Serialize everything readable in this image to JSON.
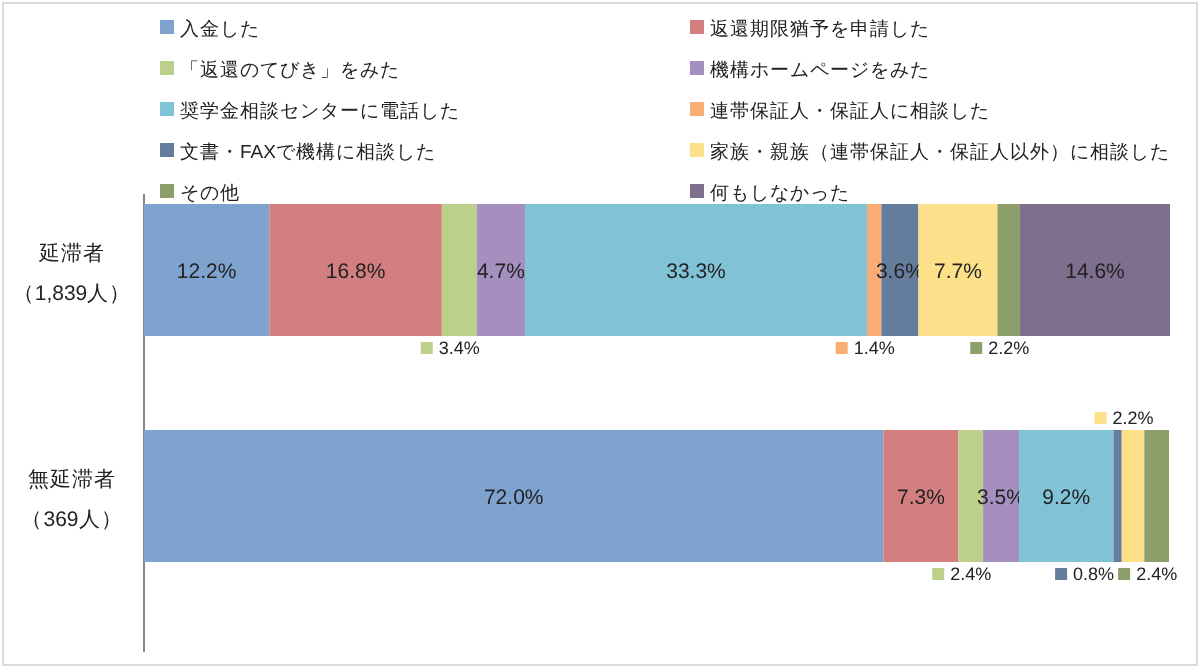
{
  "chart_data": {
    "type": "bar",
    "orientation": "horizontal",
    "stacked": true,
    "legend": "top",
    "data_labels": true,
    "categories": [
      "延滞者（1,839人）",
      "無延滞者（369人）"
    ],
    "series": [
      {
        "name": "入金した",
        "color": "#7fa3cf",
        "values": [
          12.2,
          72.0
        ],
        "value_labels": [
          "12.2%",
          "72.0%"
        ]
      },
      {
        "name": "返還期限猶予を申請した",
        "color": "#d47f7f",
        "values": [
          16.8,
          7.3
        ],
        "value_labels": [
          "16.8%",
          "7.3%"
        ]
      },
      {
        "name": "「返還のてびき」をみた",
        "color": "#bcd08b",
        "values": [
          3.4,
          2.4
        ],
        "value_labels": [
          "3.4%",
          "2.4%"
        ]
      },
      {
        "name": "機構ホームページをみた",
        "color": "#a48fbf",
        "values": [
          4.7,
          3.5
        ],
        "value_labels": [
          "4.7%",
          "3.5%"
        ]
      },
      {
        "name": "奨学金相談センターに電話した",
        "color": "#80c3d6",
        "values": [
          33.3,
          9.2
        ],
        "value_labels": [
          "33.3%",
          "9.2%"
        ]
      },
      {
        "name": "連帯保証人・保証人に相談した",
        "color": "#f9ad74",
        "values": [
          1.4,
          null
        ],
        "value_labels": [
          "1.4%",
          null
        ]
      },
      {
        "name": "文書・FAXで機構に相談した",
        "color": "#657d9c",
        "values": [
          3.6,
          0.8
        ],
        "value_labels": [
          "3.6%",
          "0.8%"
        ]
      },
      {
        "name": "家族・親族（連帯保証人・保証人以外）に相談した",
        "color": "#fde18a",
        "values": [
          7.7,
          2.2
        ],
        "value_labels": [
          "7.7%",
          "2.2%"
        ]
      },
      {
        "name": "その他",
        "color": "#8c9e69",
        "values": [
          2.2,
          2.4
        ],
        "value_labels": [
          "2.2%",
          "2.4%"
        ]
      },
      {
        "name": "何もしなかった",
        "color": "#7f6f8e",
        "values": [
          14.6,
          null
        ],
        "value_labels": [
          "14.6%",
          null
        ]
      }
    ]
  }
}
